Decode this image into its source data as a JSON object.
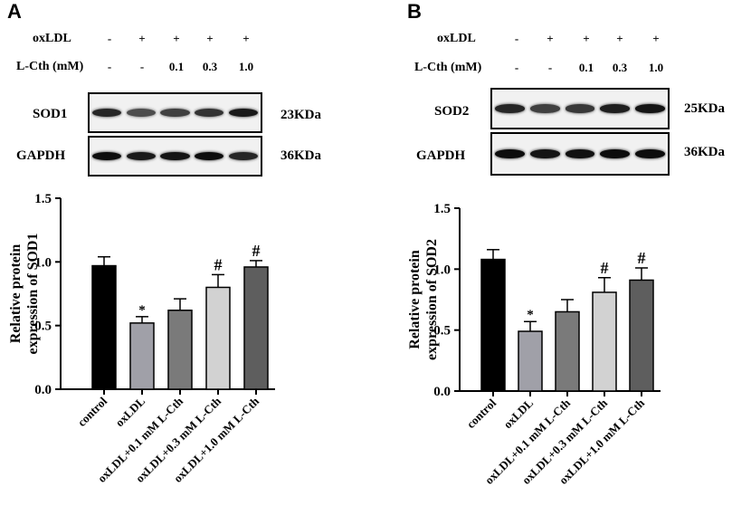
{
  "panels": [
    {
      "letter": "A",
      "conditions": {
        "oxldl_label": "oxLDL",
        "oxldl_values": [
          "-",
          "+",
          "+",
          "+",
          "+"
        ],
        "lcth_label": "L-Cth (mM)",
        "lcth_values": [
          "-",
          "-",
          "0.1",
          "0.3",
          "1.0"
        ]
      },
      "blots": [
        {
          "label": "SOD1",
          "kda": "23KDa",
          "intensity": [
            0.85,
            0.7,
            0.75,
            0.8,
            0.9
          ]
        },
        {
          "label": "GAPDH",
          "kda": "36KDa",
          "intensity": [
            0.95,
            0.9,
            0.92,
            0.95,
            0.85
          ]
        }
      ]
    },
    {
      "letter": "B",
      "conditions": {
        "oxldl_label": "oxLDL",
        "oxldl_values": [
          "-",
          "+",
          "+",
          "+",
          "+"
        ],
        "lcth_label": "L-Cth (mM)",
        "lcth_values": [
          "-",
          "-",
          "0.1",
          "0.3",
          "1.0"
        ]
      },
      "blots": [
        {
          "label": "SOD2",
          "kda": "25KDa",
          "intensity": [
            0.85,
            0.75,
            0.78,
            0.88,
            0.92
          ]
        },
        {
          "label": "GAPDH",
          "kda": "36KDa",
          "intensity": [
            0.95,
            0.92,
            0.93,
            0.95,
            0.95
          ]
        }
      ]
    }
  ],
  "chart_data": [
    {
      "type": "bar",
      "categories": [
        "control",
        "oxLDL",
        "oxLDL+0.1 mM L-Cth",
        "oxLDL+0.3 mM L-Cth",
        "oxLDL+1.0 mM L-Cth"
      ],
      "values": [
        0.97,
        0.52,
        0.62,
        0.8,
        0.96
      ],
      "errors": [
        0.07,
        0.05,
        0.09,
        0.1,
        0.05
      ],
      "annotations": [
        "",
        "*",
        "",
        "#",
        "#"
      ],
      "ylabel_line1": "Relative protein",
      "ylabel_line2": "expression of SOD1",
      "ylim": [
        0,
        1.5
      ],
      "yticks": [
        "0.0",
        "0.5",
        "1.0",
        "1.5"
      ],
      "colors": [
        "#000000",
        "#a0a0a8",
        "#7a7a7a",
        "#d2d2d2",
        "#5e5e5e"
      ]
    },
    {
      "type": "bar",
      "categories": [
        "control",
        "oxLDL",
        "oxLDL+0.1 mM L-Cth",
        "oxLDL+0.3 mM L-Cth",
        "oxLDL+1.0 mM L-Cth"
      ],
      "values": [
        1.08,
        0.49,
        0.65,
        0.81,
        0.91
      ],
      "errors": [
        0.08,
        0.08,
        0.1,
        0.12,
        0.1
      ],
      "annotations": [
        "",
        "*",
        "",
        "#",
        "#"
      ],
      "ylabel_line1": "Relative protein",
      "ylabel_line2": "expression of SOD2",
      "ylim": [
        0,
        1.5
      ],
      "yticks": [
        "0.0",
        "0.5",
        "1.0",
        "1.5"
      ],
      "colors": [
        "#000000",
        "#a0a0a8",
        "#7a7a7a",
        "#d2d2d2",
        "#5e5e5e"
      ]
    }
  ]
}
